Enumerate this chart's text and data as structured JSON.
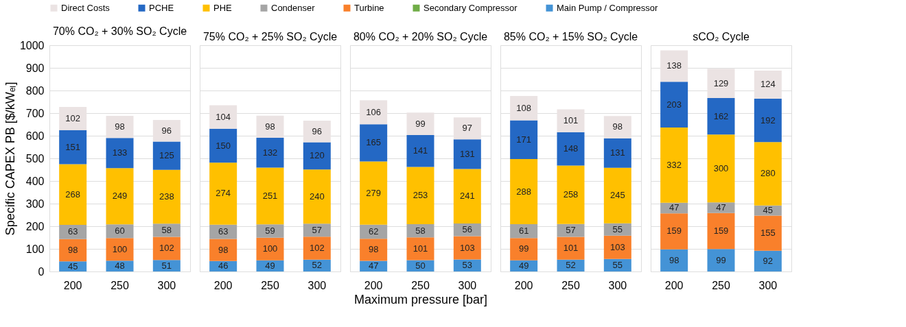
{
  "chart_data": [
    {
      "type": "bar",
      "stacked": true,
      "data_labels": true,
      "title": "70% CO₂ + 30% SO₂ Cycle",
      "ylabel": "Specific CAPEX PB [$/kWₑₗ]",
      "categories": [
        "200",
        "250",
        "300"
      ],
      "ylim": [
        0,
        1000
      ],
      "yticks": [
        0,
        100,
        200,
        300,
        400,
        500,
        600,
        700,
        800,
        900,
        1000
      ],
      "grid": "y",
      "legend": "top",
      "series": [
        {
          "name": "Main Pump / Compressor",
          "color": "#4493d6",
          "values": [
            45,
            48,
            51
          ]
        },
        {
          "name": "Secondary Compressor",
          "color": "#70ad47",
          "values": [
            null,
            null,
            null
          ]
        },
        {
          "name": "Turbine",
          "color": "#f9802b",
          "values": [
            98,
            100,
            102
          ]
        },
        {
          "name": "Condenser",
          "color": "#a5a5a5",
          "values": [
            63,
            60,
            58
          ]
        },
        {
          "name": "PHE",
          "color": "#ffc000",
          "values": [
            268,
            249,
            238
          ]
        },
        {
          "name": "PCHE",
          "color": "#2468c4",
          "values": [
            151,
            133,
            125
          ]
        },
        {
          "name": "Direct Costs",
          "color": "#ebe3e3",
          "values": [
            102,
            98,
            96
          ]
        }
      ]
    },
    {
      "type": "bar",
      "stacked": true,
      "data_labels": true,
      "title": "75% CO₂ + 25% SO₂ Cycle",
      "categories": [
        "200",
        "250",
        "300"
      ],
      "ylim": [
        0,
        1000
      ],
      "yticks": [
        0,
        100,
        200,
        300,
        400,
        500,
        600,
        700,
        800,
        900,
        1000
      ],
      "grid": "y",
      "tick_labels": "x",
      "series": [
        {
          "name": "Main Pump / Compressor",
          "color": "#4493d6",
          "values": [
            46,
            49,
            52
          ]
        },
        {
          "name": "Turbine",
          "color": "#f9802b",
          "values": [
            98,
            100,
            102
          ]
        },
        {
          "name": "Condenser",
          "color": "#a5a5a5",
          "values": [
            63,
            59,
            57
          ]
        },
        {
          "name": "PHE",
          "color": "#ffc000",
          "values": [
            274,
            251,
            240
          ]
        },
        {
          "name": "PCHE",
          "color": "#2468c4",
          "values": [
            150,
            132,
            120
          ]
        },
        {
          "name": "Direct Costs",
          "color": "#ebe3e3",
          "values": [
            104,
            98,
            96
          ]
        }
      ]
    },
    {
      "type": "bar",
      "stacked": true,
      "data_labels": true,
      "title": "80% CO₂ + 20% SO₂ Cycle",
      "xlabel": "Maximum pressure [bar]",
      "categories": [
        "200",
        "250",
        "300"
      ],
      "ylim": [
        0,
        1000
      ],
      "yticks": [
        0,
        100,
        200,
        300,
        400,
        500,
        600,
        700,
        800,
        900,
        1000
      ],
      "grid": "y",
      "tick_labels": "x",
      "series": [
        {
          "name": "Main Pump / Compressor",
          "color": "#4493d6",
          "values": [
            47,
            50,
            53
          ]
        },
        {
          "name": "Turbine",
          "color": "#f9802b",
          "values": [
            98,
            101,
            103
          ]
        },
        {
          "name": "Condenser",
          "color": "#a5a5a5",
          "values": [
            62,
            58,
            56
          ]
        },
        {
          "name": "PHE",
          "color": "#ffc000",
          "values": [
            279,
            253,
            241
          ]
        },
        {
          "name": "PCHE",
          "color": "#2468c4",
          "values": [
            165,
            141,
            131
          ]
        },
        {
          "name": "Direct Costs",
          "color": "#ebe3e3",
          "values": [
            106,
            99,
            97
          ]
        }
      ]
    },
    {
      "type": "bar",
      "stacked": true,
      "data_labels": true,
      "title": "85% CO₂ + 15% SO₂ Cycle",
      "categories": [
        "200",
        "250",
        "300"
      ],
      "ylim": [
        0,
        1000
      ],
      "yticks": [
        0,
        100,
        200,
        300,
        400,
        500,
        600,
        700,
        800,
        900,
        1000
      ],
      "grid": "y",
      "tick_labels": "x",
      "series": [
        {
          "name": "Main Pump / Compressor",
          "color": "#4493d6",
          "values": [
            49,
            52,
            55
          ]
        },
        {
          "name": "Turbine",
          "color": "#f9802b",
          "values": [
            99,
            101,
            103
          ]
        },
        {
          "name": "Condenser",
          "color": "#a5a5a5",
          "values": [
            61,
            57,
            55
          ]
        },
        {
          "name": "PHE",
          "color": "#ffc000",
          "values": [
            288,
            258,
            245
          ]
        },
        {
          "name": "PCHE",
          "color": "#2468c4",
          "values": [
            171,
            148,
            131
          ]
        },
        {
          "name": "Direct Costs",
          "color": "#ebe3e3",
          "values": [
            108,
            101,
            98
          ]
        }
      ]
    },
    {
      "type": "bar",
      "stacked": true,
      "data_labels": true,
      "title": "sCO₂ Cycle",
      "categories": [
        "200",
        "250",
        "300"
      ],
      "ylim": [
        0,
        1000
      ],
      "yticks": [
        0,
        100,
        200,
        300,
        400,
        500,
        600,
        700,
        800,
        900,
        1000
      ],
      "grid": "y",
      "tick_labels": "x",
      "series": [
        {
          "name": "Main Pump / Compressor",
          "color": "#4493d6",
          "values": [
            98,
            99,
            92
          ]
        },
        {
          "name": "Turbine",
          "color": "#f9802b",
          "values": [
            159,
            159,
            155
          ]
        },
        {
          "name": "Condenser",
          "color": "#a5a5a5",
          "values": [
            47,
            47,
            45
          ]
        },
        {
          "name": "PHE",
          "color": "#ffc000",
          "values": [
            332,
            300,
            280
          ]
        },
        {
          "name": "PCHE",
          "color": "#2468c4",
          "values": [
            203,
            162,
            192
          ]
        },
        {
          "name": "Direct Costs",
          "color": "#ebe3e3",
          "values": [
            138,
            129,
            124
          ]
        }
      ]
    }
  ]
}
